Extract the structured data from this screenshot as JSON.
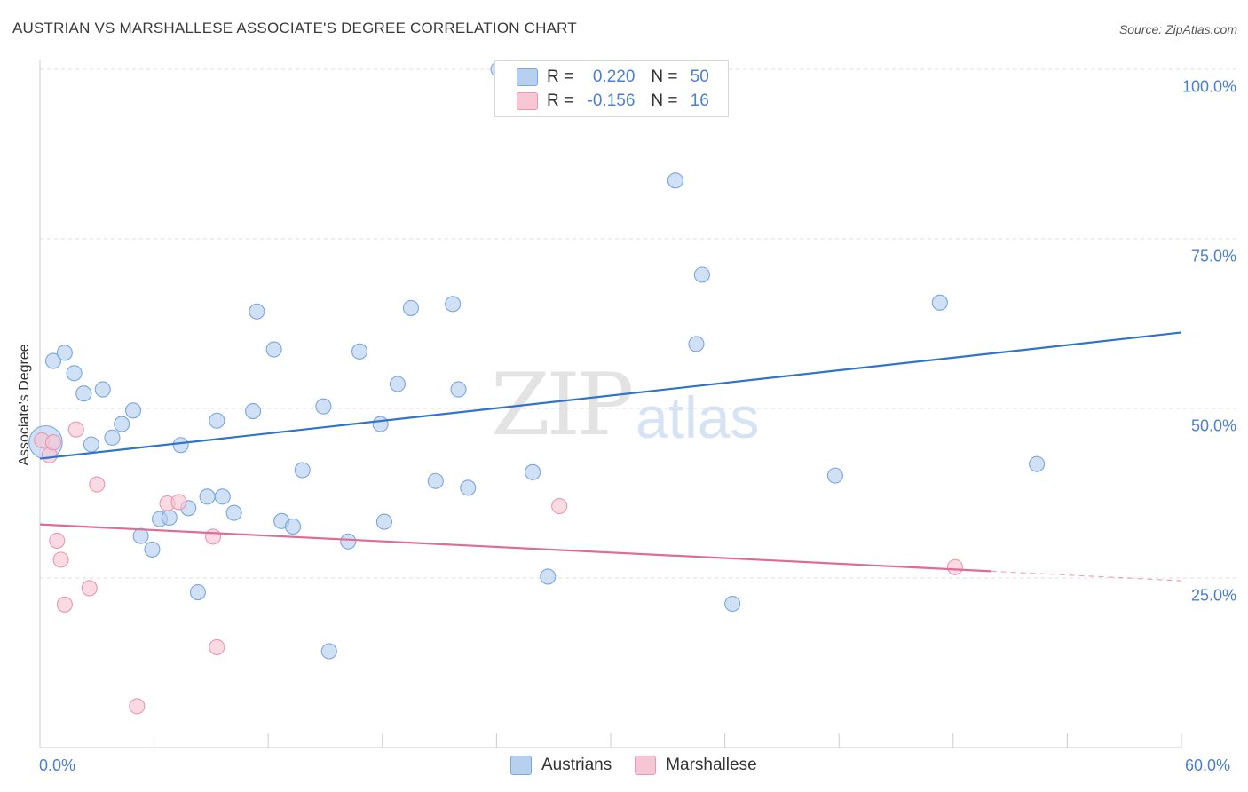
{
  "title": "AUSTRIAN VS MARSHALLESE ASSOCIATE'S DEGREE CORRELATION CHART",
  "source": "Source: ZipAtlas.com",
  "watermark": {
    "zip": "ZIP",
    "atlas": "atlas"
  },
  "legend_top": {
    "rows": [
      {
        "r_label": "R =",
        "r_value": "0.220",
        "n_label": "N =",
        "n_value": "50"
      },
      {
        "r_label": "R =",
        "r_value": "-0.156",
        "n_label": "N =",
        "n_value": "16"
      }
    ]
  },
  "legend_bottom": [
    "Austrians",
    "Marshallese"
  ],
  "colors": {
    "austrians_fill": "#b7d0f0",
    "austrians_stroke": "#7aa6dd",
    "austrians_line": "#2f74cc",
    "marshallese_fill": "#f7c6d4",
    "marshallese_stroke": "#e898b2",
    "marshallese_line": "#e06b95",
    "tick_text": "#4a7fd0",
    "grid": "#dddddd"
  },
  "chart_data": {
    "type": "scatter",
    "title": "AUSTRIAN VS MARSHALLESE ASSOCIATE'S DEGREE CORRELATION CHART",
    "xlabel": "",
    "ylabel": "Associate's Degree",
    "xlim": [
      0,
      60
    ],
    "ylim": [
      0,
      102
    ],
    "x_tick_labels": [
      "0.0%",
      "60.0%"
    ],
    "y_ticks": [
      25,
      50,
      75,
      100
    ],
    "y_tick_labels": [
      "25.0%",
      "50.0%",
      "75.0%",
      "100.0%"
    ],
    "grid": true,
    "series": [
      {
        "name": "Austrians",
        "r": 0.22,
        "n": 50,
        "points": [
          [
            0.3,
            45.0,
            2.2
          ],
          [
            0.7,
            57.0,
            1
          ],
          [
            1.3,
            58.2,
            1
          ],
          [
            1.8,
            55.2,
            1
          ],
          [
            2.3,
            52.2,
            1
          ],
          [
            2.7,
            44.7,
            1
          ],
          [
            3.3,
            52.8,
            1
          ],
          [
            3.8,
            45.7,
            1
          ],
          [
            4.3,
            47.7,
            1
          ],
          [
            4.9,
            49.7,
            1
          ],
          [
            5.3,
            31.2,
            1
          ],
          [
            5.9,
            29.2,
            1
          ],
          [
            6.3,
            33.7,
            1
          ],
          [
            6.8,
            33.9,
            1
          ],
          [
            7.4,
            44.6,
            1
          ],
          [
            7.8,
            35.3,
            1
          ],
          [
            8.3,
            22.9,
            1
          ],
          [
            8.8,
            37.0,
            1
          ],
          [
            9.3,
            48.2,
            1
          ],
          [
            9.6,
            37.0,
            1
          ],
          [
            10.2,
            34.6,
            1
          ],
          [
            11.2,
            49.6,
            1
          ],
          [
            11.4,
            64.3,
            1
          ],
          [
            12.3,
            58.7,
            1
          ],
          [
            12.7,
            33.4,
            1
          ],
          [
            13.3,
            32.6,
            1
          ],
          [
            13.8,
            40.9,
            1
          ],
          [
            14.9,
            50.3,
            1
          ],
          [
            15.2,
            14.2,
            1
          ],
          [
            16.2,
            30.4,
            1
          ],
          [
            16.8,
            58.4,
            1
          ],
          [
            17.9,
            47.7,
            1
          ],
          [
            18.1,
            33.3,
            1
          ],
          [
            18.8,
            53.6,
            1
          ],
          [
            19.5,
            64.8,
            1
          ],
          [
            20.8,
            39.3,
            1
          ],
          [
            21.7,
            65.4,
            1
          ],
          [
            22.0,
            52.8,
            1
          ],
          [
            22.5,
            38.3,
            1
          ],
          [
            24.1,
            100.0,
            1
          ],
          [
            25.9,
            40.6,
            1
          ],
          [
            26.7,
            25.2,
            1
          ],
          [
            27.9,
            100.0,
            1
          ],
          [
            33.4,
            83.6,
            1
          ],
          [
            34.5,
            59.5,
            1
          ],
          [
            34.8,
            69.7,
            1
          ],
          [
            36.4,
            21.2,
            1
          ],
          [
            41.8,
            40.1,
            1
          ],
          [
            47.3,
            65.6,
            1
          ],
          [
            52.4,
            41.8,
            1
          ]
        ],
        "trend": {
          "x": [
            0,
            60
          ],
          "y": [
            42.6,
            61.2
          ]
        }
      },
      {
        "name": "Marshallese",
        "r": -0.156,
        "n": 16,
        "points": [
          [
            0.1,
            45.3,
            1
          ],
          [
            0.5,
            43.1,
            1
          ],
          [
            0.7,
            45.0,
            1
          ],
          [
            0.9,
            30.5,
            1
          ],
          [
            1.1,
            27.7,
            1
          ],
          [
            1.3,
            21.1,
            1
          ],
          [
            1.9,
            46.9,
            1
          ],
          [
            2.6,
            23.5,
            1
          ],
          [
            3.0,
            38.8,
            1
          ],
          [
            5.1,
            6.1,
            1
          ],
          [
            6.7,
            36.0,
            1
          ],
          [
            7.3,
            36.2,
            1
          ],
          [
            9.1,
            31.1,
            1
          ],
          [
            9.3,
            14.8,
            1
          ],
          [
            27.3,
            35.6,
            1
          ],
          [
            48.1,
            26.6,
            1
          ]
        ],
        "trend": {
          "x": [
            0,
            50
          ],
          "y": [
            32.9,
            26.0
          ]
        },
        "trend_extension": {
          "x": [
            50,
            60
          ],
          "y": [
            26.0,
            24.6
          ]
        }
      }
    ]
  }
}
